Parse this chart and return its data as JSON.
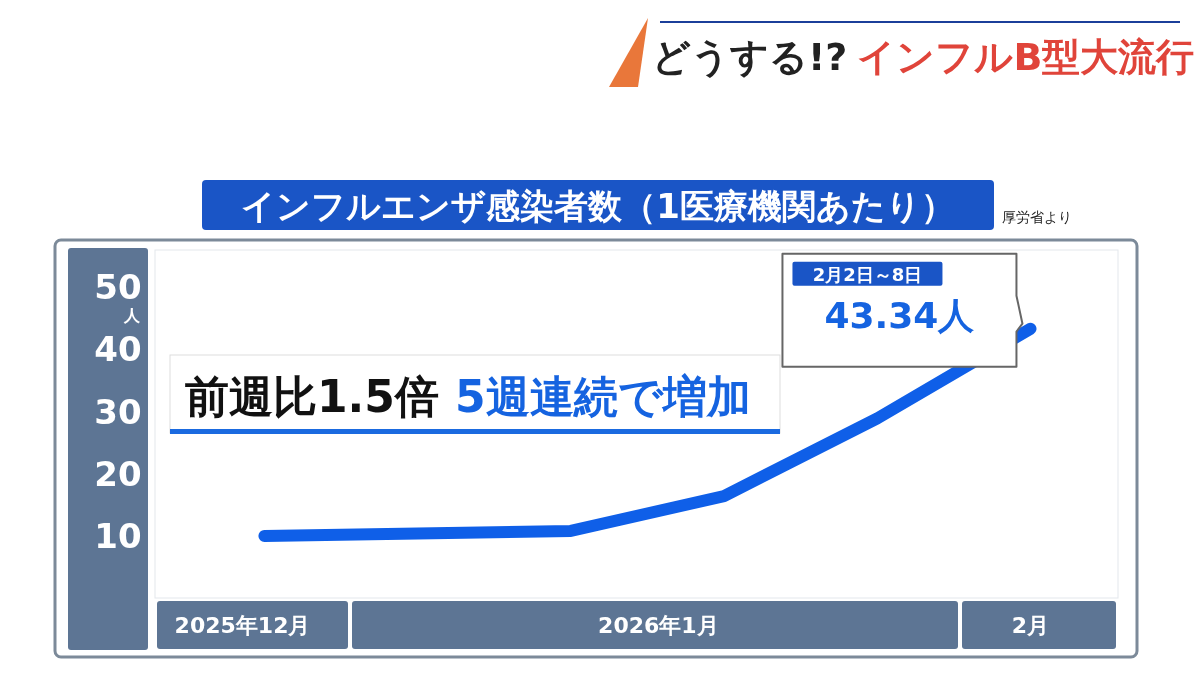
{
  "chart_data": {
    "type": "line",
    "title": "インフルエンザ感染者数（1医療機関あたり）",
    "ylabel": "人",
    "x": [
      "2025-12-29",
      "2026-01-05",
      "2026-01-12",
      "2026-01-19",
      "2026-01-26",
      "2026-02-02"
    ],
    "xlim": [
      "2025-12-24",
      "2026-02-06"
    ],
    "xticks": [
      {
        "value": "2025-12-28",
        "label": "2025年12月"
      },
      {
        "value": "2026-01-16",
        "label": "2026年1月"
      },
      {
        "value": "2026-02-02",
        "label": "2月"
      }
    ],
    "series": [
      {
        "color": "#0f5fe8",
        "values": [
          10.0,
          10.4,
          10.8,
          16.4,
          28.9,
          43.34
        ],
        "value_labels": [
          null,
          null,
          null,
          null,
          null,
          "43.34人"
        ]
      }
    ],
    "ylim": [
      0,
      56
    ],
    "yticks": [
      10,
      20,
      30,
      40,
      50
    ],
    "marker": "none",
    "line_style": "solid",
    "annotations": [
      "どうする!?",
      "インフルB型大流行",
      "厚労省より",
      "前週比1.5倍",
      "5週連続で増加",
      "2月2日～8日"
    ]
  }
}
